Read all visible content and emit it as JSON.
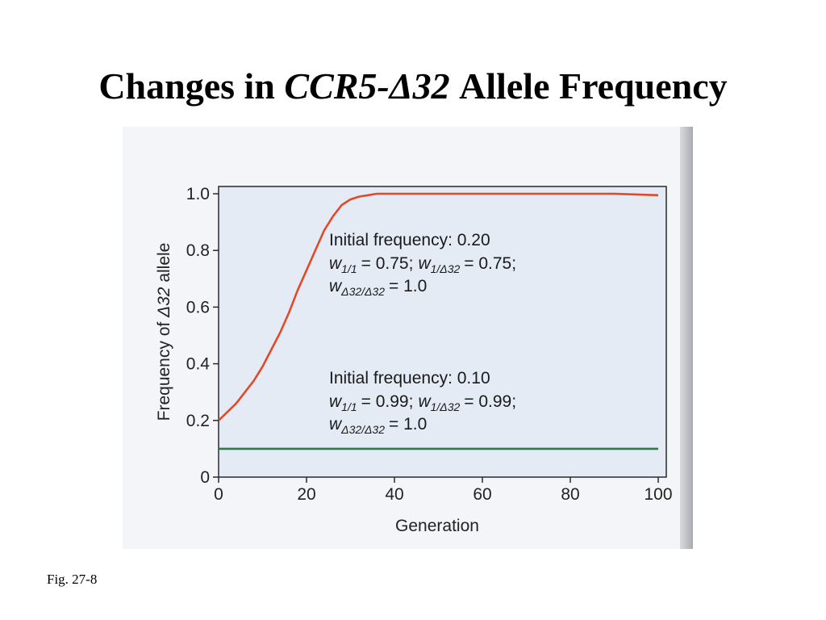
{
  "slide": {
    "title_prefix": "Changes in ",
    "title_gene": "CCR5-Δ32",
    "title_suffix": " Allele Frequency",
    "caption": "Fig. 27-8"
  },
  "chart_data": {
    "type": "line",
    "title": "",
    "xlabel": "Generation",
    "ylabel_prefix": "Frequency of ",
    "ylabel_italic": "Δ32",
    "ylabel_suffix": " allele",
    "xlim": [
      0,
      100
    ],
    "ylim": [
      0,
      1.0
    ],
    "x_ticks": [
      0,
      20,
      40,
      60,
      80,
      100
    ],
    "x_tick_labels": [
      "0",
      "20",
      "40",
      "60",
      "80",
      "100"
    ],
    "y_ticks": [
      0,
      0.2,
      0.4,
      0.6,
      0.8,
      1.0
    ],
    "y_tick_labels": [
      "0",
      "0.2",
      "0.4",
      "0.6",
      "0.8",
      "1.0"
    ],
    "grid": false,
    "series": [
      {
        "color": "#e04a2a",
        "x": [
          0,
          2,
          4,
          6,
          8,
          10,
          12,
          14,
          16,
          18,
          20,
          22,
          24,
          26,
          28,
          30,
          32,
          34,
          36,
          40,
          50,
          60,
          70,
          80,
          90,
          100
        ],
        "y": [
          0.2,
          0.23,
          0.26,
          0.3,
          0.34,
          0.39,
          0.45,
          0.51,
          0.58,
          0.66,
          0.73,
          0.8,
          0.87,
          0.92,
          0.96,
          0.98,
          0.99,
          0.995,
          1.0,
          1.0,
          1.0,
          1.0,
          1.0,
          1.0,
          1.0,
          0.995
        ]
      },
      {
        "color": "#2a7a4a",
        "x": [
          0,
          20,
          40,
          60,
          80,
          100
        ],
        "y": [
          0.1,
          0.1,
          0.1,
          0.1,
          0.1,
          0.1
        ]
      }
    ],
    "annotations": [
      {
        "line1": "Initial frequency: 0.20",
        "w11": "= 0.75;",
        "w1d": "= 0.75;",
        "wdd": "= 1.0"
      },
      {
        "line1": "Initial frequency: 0.10",
        "w11": "= 0.99;",
        "w1d": "= 0.99;",
        "wdd": "= 1.0"
      }
    ],
    "w_symbol": "w",
    "sub_11": "1/1",
    "sub_1d": "1/Δ32",
    "sub_dd": "Δ32/Δ32"
  }
}
